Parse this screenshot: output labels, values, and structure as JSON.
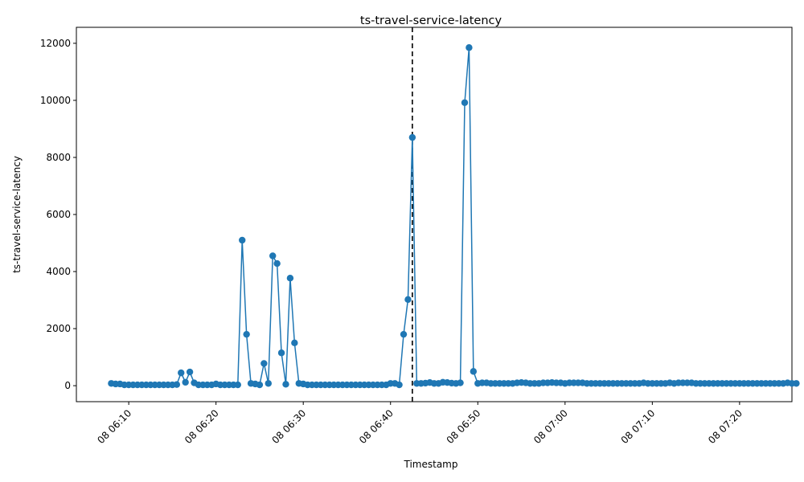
{
  "chart_data": {
    "type": "line",
    "title": "ts-travel-service-latency",
    "xlabel": "Timestamp",
    "ylabel": "ts-travel-service-latency",
    "ylim": [
      -560,
      12560
    ],
    "xlim": [
      "08 06:04",
      "08 07:26"
    ],
    "grid": false,
    "markers": "circle",
    "line_color": "#1f77b4",
    "x_ticks": [
      {
        "value": "08 06:10",
        "label": "08 06:10"
      },
      {
        "value": "08 06:20",
        "label": "08 06:20"
      },
      {
        "value": "08 06:30",
        "label": "08 06:30"
      },
      {
        "value": "08 06:40",
        "label": "08 06:40"
      },
      {
        "value": "08 06:50",
        "label": "08 06:50"
      },
      {
        "value": "08 07:00",
        "label": "08 07:00"
      },
      {
        "value": "08 07:10",
        "label": "08 07:10"
      },
      {
        "value": "08 07:20",
        "label": "08 07:20"
      }
    ],
    "y_ticks": [
      0,
      2000,
      4000,
      6000,
      8000,
      10000,
      12000
    ],
    "vertical_marker": {
      "x": "08 06:42:30",
      "style": "dashed",
      "color": "#000000"
    },
    "series": [
      {
        "x_start": "08 06:08:00",
        "x_step_seconds": 30,
        "values": [
          80,
          60,
          60,
          30,
          30,
          30,
          30,
          30,
          30,
          30,
          30,
          30,
          30,
          30,
          30,
          40,
          450,
          120,
          480,
          100,
          30,
          30,
          30,
          30,
          60,
          30,
          30,
          30,
          30,
          30,
          5100,
          1800,
          80,
          60,
          30,
          780,
          80,
          4550,
          4280,
          1150,
          50,
          3770,
          1500,
          80,
          60,
          30,
          30,
          30,
          30,
          30,
          30,
          30,
          30,
          30,
          30,
          30,
          30,
          30,
          30,
          30,
          30,
          30,
          30,
          30,
          80,
          80,
          30,
          1800,
          3020,
          8700,
          80,
          80,
          90,
          110,
          80,
          80,
          120,
          110,
          90,
          80,
          100,
          9920,
          11850,
          500,
          80,
          100,
          100,
          80,
          80,
          80,
          80,
          80,
          80,
          100,
          110,
          100,
          80,
          80,
          80,
          100,
          100,
          110,
          100,
          100,
          80,
          100,
          100,
          100,
          100,
          80,
          80,
          80,
          80,
          80,
          80,
          80,
          80,
          80,
          80,
          80,
          80,
          80,
          100,
          80,
          80,
          80,
          80,
          80,
          100,
          80,
          100,
          100,
          100,
          100,
          80,
          80,
          80,
          80,
          80,
          80,
          80,
          80,
          80,
          80,
          80,
          80,
          80,
          80,
          80,
          80,
          80,
          80,
          80,
          80,
          80,
          100,
          80,
          80
        ]
      }
    ]
  }
}
